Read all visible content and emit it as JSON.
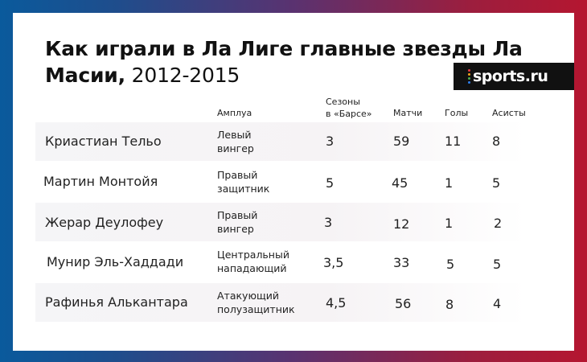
{
  "title": {
    "bold": "Как играли в Ла Лиге главные звезды Ла Масии,",
    "rest": " 2012-2015"
  },
  "logo": {
    "text": "sports.ru",
    "dot_colors": [
      "#e63946",
      "#f4a31a",
      "#4caf50",
      "#2f80ed"
    ]
  },
  "columns": {
    "role": "Амплуа",
    "seasons_line1": "Сезоны",
    "seasons_line2": "в «Барсе»",
    "matches": "Матчи",
    "goals": "Голы",
    "assists": "Асисты"
  },
  "rows": [
    {
      "name": "Криастиан Тельо",
      "role1": "Левый",
      "role2": "вингер",
      "seasons": "3",
      "matches": "59",
      "goals": "11",
      "assists": "8"
    },
    {
      "name": "Мартин Монтойя",
      "role1": "Правый",
      "role2": "защитник",
      "seasons": "5",
      "matches": "45",
      "goals": "1",
      "assists": "5"
    },
    {
      "name": "Жерар Деулофеу",
      "role1": "Правый",
      "role2": "вингер",
      "seasons": "3",
      "matches": "12",
      "goals": "1",
      "assists": "2"
    },
    {
      "name": "Мунир Эль-Хаддади",
      "role1": "Центральный",
      "role2": "нападающий",
      "seasons": "3,5",
      "matches": "33",
      "goals": "5",
      "assists": "5"
    },
    {
      "name": "Рафинья Алькантара",
      "role1": "Атакующий",
      "role2": "полузащитник",
      "seasons": "4,5",
      "matches": "56",
      "goals": "8",
      "assists": "4"
    }
  ],
  "colors": {
    "background_left": "#0a5a9c",
    "background_right": "#b51630",
    "logo_bg": "#111111",
    "row_shade": "#f5f5f7"
  }
}
